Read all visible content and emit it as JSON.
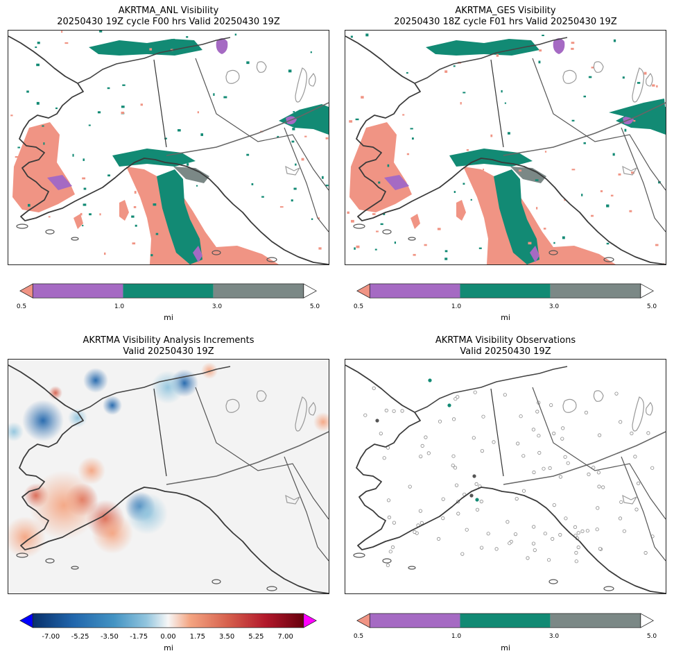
{
  "panels": [
    {
      "title_line1": "AKRTMA_ANL Visibility",
      "title_line2": "20250430 19Z cycle F00 hrs Valid 20250430 19Z"
    },
    {
      "title_line1": "AKRTMA_GES Visibility",
      "title_line2": "20250430 18Z cycle F01 hrs Valid 20250430 19Z"
    },
    {
      "title_line1": "AKRTMA Visibility Analysis Increments",
      "title_line2": "Valid 20250430 19Z"
    },
    {
      "title_line1": "AKRTMA Visibility Observations",
      "title_line2": "Valid 20250430 19Z"
    }
  ],
  "vis_colorbar": {
    "unit": "mi",
    "ticks": [
      "0.5",
      "1.0",
      "3.0",
      "5.0"
    ],
    "colors": {
      "under": "#f09484",
      "b1": "#a56ac3",
      "b2": "#128a74",
      "b3": "#7b8886",
      "over": "#ffffff"
    }
  },
  "inc_colorbar": {
    "unit": "mi",
    "ticks": [
      "-7.00",
      "-5.25",
      "-3.50",
      "-1.75",
      "0.00",
      "1.75",
      "3.50",
      "5.25",
      "7.00"
    ],
    "colors": {
      "under": "#0000ff",
      "over": "#ff00ff",
      "neg": "#08306b",
      "pos": "#67000d"
    }
  }
}
